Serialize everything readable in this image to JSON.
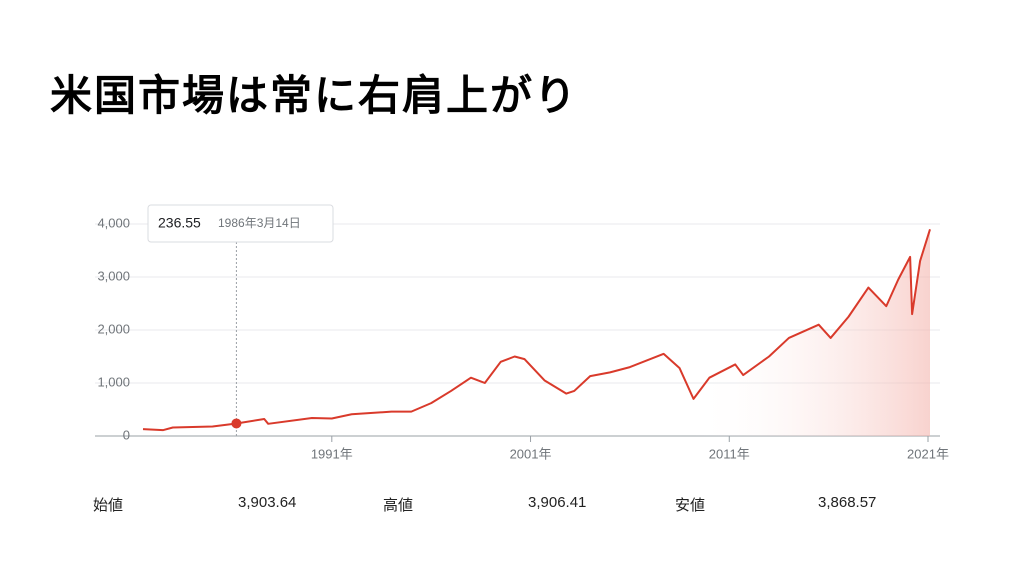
{
  "title": "米国市場は常に右肩上がり",
  "chart_data": {
    "type": "line",
    "x": [
      1981.5,
      1982.5,
      1983,
      1985,
      1986.2,
      1987.6,
      1987.8,
      1990,
      1991,
      1992,
      1994,
      1995,
      1996,
      1997,
      1998,
      1998.7,
      1999.5,
      2000.2,
      2000.7,
      2001.7,
      2002.8,
      2003.2,
      2004,
      2005,
      2006,
      2007.7,
      2008.5,
      2009.2,
      2010,
      2011.3,
      2011.7,
      2013,
      2014,
      2015.5,
      2016.1,
      2017,
      2018,
      2018.9,
      2019.5,
      2020.1,
      2020.2,
      2020.6,
      2021.1
    ],
    "series": [
      {
        "color": "#d93a2b",
        "values": [
          130,
          110,
          160,
          180,
          236.55,
          320,
          230,
          340,
          330,
          410,
          460,
          460,
          620,
          850,
          1100,
          1000,
          1400,
          1500,
          1450,
          1050,
          800,
          850,
          1130,
          1200,
          1300,
          1550,
          1280,
          700,
          1100,
          1350,
          1150,
          1500,
          1850,
          2100,
          1850,
          2250,
          2800,
          2450,
          2950,
          3380,
          2300,
          3300,
          3900
        ]
      }
    ],
    "xlim": [
      1981.5,
      2021.1
    ],
    "xticks": [
      {
        "value": 1991,
        "label": "1991年"
      },
      {
        "value": 2001,
        "label": "2001年"
      },
      {
        "value": 2011,
        "label": "2011年"
      },
      {
        "value": 2021,
        "label": "2021年"
      }
    ],
    "ylim": [
      0,
      4000
    ],
    "yticks": [
      0,
      {
        "value": 1000,
        "label": "1,000"
      },
      {
        "value": 2000,
        "label": "2,000"
      },
      {
        "value": 3000,
        "label": "3,000"
      },
      {
        "value": 4000,
        "label": "4,000"
      }
    ],
    "grid": true,
    "tooltip": {
      "x": 1986.2,
      "value": 236.55,
      "date": "1986年3月14日"
    }
  },
  "stats": [
    {
      "label": "始値",
      "value": "3,903.64"
    },
    {
      "label": "高値",
      "value": "3,906.41"
    },
    {
      "label": "安値",
      "value": "3,868.57"
    }
  ]
}
